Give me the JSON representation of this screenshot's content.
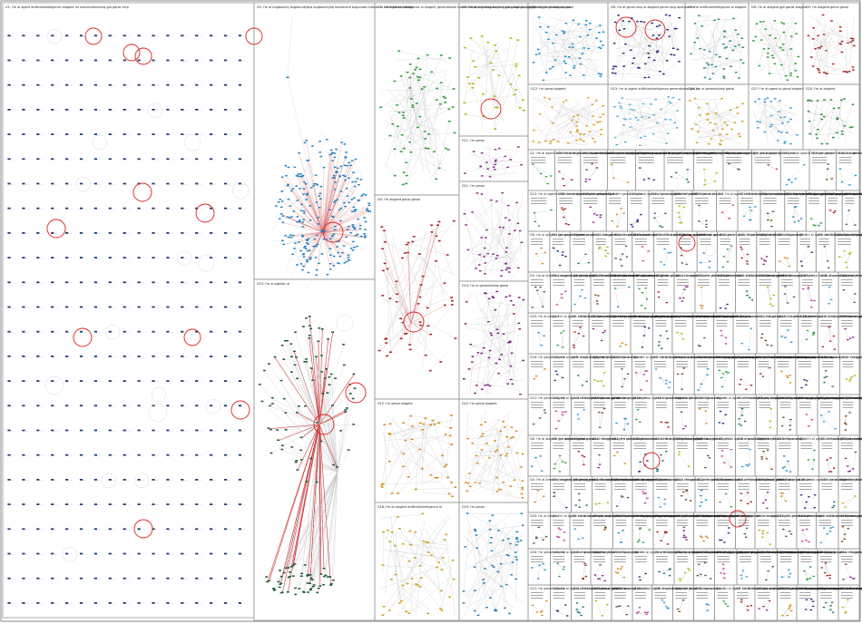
{
  "visualization": {
    "type": "clustered network graph (group-in-a-box layout)",
    "background": "#ffffff",
    "box_border_color": "#9a9a9a",
    "edge_color": "#c8c8c8",
    "hub_edge_color": "#d46a6a",
    "highlight_circle_color": "#dd2222",
    "label_text_color": "#222222"
  },
  "groups": [
    {
      "id": "G1",
      "label": "G1: i'm ai agent artificialintelligence aiagent ml machinelearning gpt genai mcp",
      "color": "#1a3a6b"
    },
    {
      "id": "G2",
      "label": "G2: i'm ai bugbounty bugbountytips bugbountytip hackerone bugcrowd infosec ai intelligence infosec",
      "color": "#1f7fc4"
    },
    {
      "id": "G3",
      "label": "G3: i'm artificialintelligence ai aiagent generativeai machinelearning deeplearning data bigdata llm gpt",
      "color": "#2e9e3a"
    },
    {
      "id": "G4",
      "label": "G4: i'm ai breaking aiagent gpt genai groq gpt5 aiagent gemini openai",
      "color": "#b5b50a"
    },
    {
      "id": "G5",
      "label": "G5: i'm genai aiagent genai",
      "color": "#3a9ed6"
    },
    {
      "id": "G6",
      "label": "G6: i'm ai genai mcp ai aiagent genai mcp opensource",
      "color": "#2a2a7a"
    },
    {
      "id": "G7",
      "label": "G7: i'm artificialintelligence ai aiagent",
      "color": "#3d3d3d"
    },
    {
      "id": "G8",
      "label": "G8: i'm ai aiagent gpt genai aiagent",
      "color": "#2a8a3a"
    },
    {
      "id": "G9",
      "label": "G9: i'm aiagent genai genai",
      "color": "#aa2222"
    },
    {
      "id": "G10",
      "label": "G10: i'm ai openai chatgpt aiagent chatbot automation",
      "color": "#1f6f6f"
    },
    {
      "id": "G11",
      "label": "G11: i'm genai",
      "color": "#8a2a8a"
    },
    {
      "id": "G12",
      "label": "G12: i'm genai aiagent",
      "color": "#d48a1a"
    },
    {
      "id": "G13",
      "label": "G13: i'm ai agent artificialintelligence generativeai gpt ai",
      "color": "#b52020"
    },
    {
      "id": "G14",
      "label": "G14: i'm ai generativeai genai",
      "color": "#7a1a7a"
    },
    {
      "id": "G15",
      "label": "G15: i'm ai agentic ai",
      "color": "#1f5a3a"
    },
    {
      "id": "G16",
      "label": "G16: i'm genai aiagent",
      "color": "#8a2a8a"
    },
    {
      "id": "G17",
      "label": "G17: i'm ai agent ai genai aiagent",
      "color": "#2e9e3a"
    },
    {
      "id": "G18",
      "label": "G18: i'm ai aiagent artificialintelligence ai",
      "color": "#cfa21a"
    },
    {
      "id": "G19",
      "label": "G19: i'm genai",
      "color": "#1a7fb5"
    },
    {
      "id": "G20",
      "label": "G20: i'm ai aiagent",
      "color": "#e09a20"
    }
  ],
  "legend_note": "small group labels are rendered at reduced size in the original image"
}
